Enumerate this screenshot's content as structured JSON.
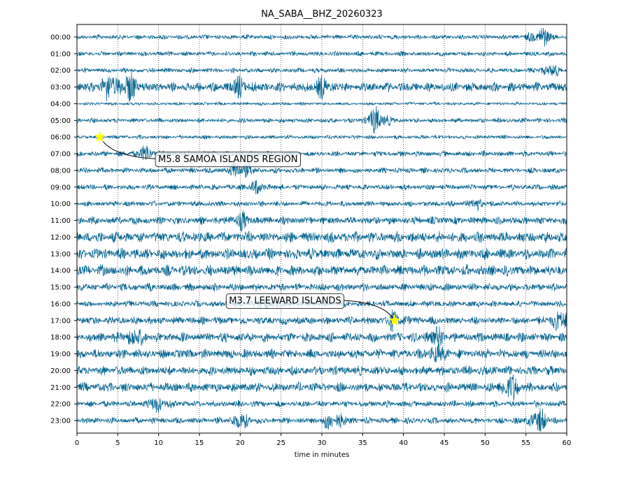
{
  "chart_data": {
    "type": "line",
    "title": "NA_SABA__BHZ_20260323",
    "xlabel": "time in minutes",
    "ylabel": "",
    "xlim": [
      0,
      60
    ],
    "x_ticks": [
      "0",
      "5",
      "10",
      "15",
      "20",
      "25",
      "30",
      "35",
      "40",
      "45",
      "50",
      "55",
      "60"
    ],
    "grid": "vertical dotted lines at each x tick",
    "trace_color": "#00628f",
    "rows": [
      {
        "label": "00:00",
        "amplitude": 3,
        "bursts": [
          {
            "t": 56.8,
            "amp": 12
          }
        ]
      },
      {
        "label": "01:00",
        "amplitude": 3,
        "bursts": []
      },
      {
        "label": "02:00",
        "amplitude": 3,
        "bursts": [
          {
            "t": 58,
            "amp": 7
          }
        ]
      },
      {
        "label": "03:00",
        "amplitude": 6,
        "bursts": [
          {
            "t": 4,
            "amp": 14
          },
          {
            "t": 6.5,
            "amp": 14
          },
          {
            "t": 20,
            "amp": 9
          },
          {
            "t": 30,
            "amp": 9
          }
        ]
      },
      {
        "label": "04:00",
        "amplitude": 2,
        "bursts": []
      },
      {
        "label": "05:00",
        "amplitude": 3,
        "bursts": [
          {
            "t": 36.8,
            "amp": 16
          }
        ]
      },
      {
        "label": "06:00",
        "amplitude": 2.5,
        "bursts": []
      },
      {
        "label": "07:00",
        "amplitude": 3.5,
        "bursts": [
          {
            "t": 8.5,
            "amp": 8
          }
        ]
      },
      {
        "label": "08:00",
        "amplitude": 3.5,
        "bursts": [
          {
            "t": 20,
            "amp": 14
          }
        ]
      },
      {
        "label": "09:00",
        "amplitude": 3.5,
        "bursts": [
          {
            "t": 22,
            "amp": 6
          }
        ]
      },
      {
        "label": "10:00",
        "amplitude": 3.5,
        "bursts": [
          {
            "t": 49,
            "amp": 5
          }
        ]
      },
      {
        "label": "11:00",
        "amplitude": 5,
        "bursts": [
          {
            "t": 20,
            "amp": 8
          }
        ]
      },
      {
        "label": "12:00",
        "amplitude": 7,
        "bursts": []
      },
      {
        "label": "13:00",
        "amplitude": 7,
        "bursts": []
      },
      {
        "label": "14:00",
        "amplitude": 7,
        "bursts": []
      },
      {
        "label": "15:00",
        "amplitude": 5,
        "bursts": []
      },
      {
        "label": "16:00",
        "amplitude": 4,
        "bursts": [
          {
            "t": 23,
            "amp": 7
          }
        ]
      },
      {
        "label": "17:00",
        "amplitude": 5,
        "bursts": [
          {
            "t": 39,
            "amp": 9
          },
          {
            "t": 59,
            "amp": 11
          }
        ]
      },
      {
        "label": "18:00",
        "amplitude": 6,
        "bursts": [
          {
            "t": 7,
            "amp": 9
          },
          {
            "t": 44,
            "amp": 9
          }
        ]
      },
      {
        "label": "19:00",
        "amplitude": 6,
        "bursts": [
          {
            "t": 44,
            "amp": 8
          }
        ]
      },
      {
        "label": "20:00",
        "amplitude": 6,
        "bursts": []
      },
      {
        "label": "21:00",
        "amplitude": 6,
        "bursts": [
          {
            "t": 53,
            "amp": 14
          }
        ]
      },
      {
        "label": "22:00",
        "amplitude": 4,
        "bursts": [
          {
            "t": 10,
            "amp": 9
          }
        ]
      },
      {
        "label": "23:00",
        "amplitude": 4,
        "bursts": [
          {
            "t": 20,
            "amp": 9
          },
          {
            "t": 31.5,
            "amp": 12
          },
          {
            "t": 56.5,
            "amp": 13
          }
        ]
      }
    ],
    "annotations": [
      {
        "text": "M5.8 SAMOA ISLANDS REGION",
        "row": 6,
        "t": 2.8,
        "label_t": 18.5,
        "label_row": 7.3,
        "marker_color": "#ffff00"
      },
      {
        "text": "M3.7 LEEWARD ISLANDS",
        "row": 17,
        "t": 38.9,
        "label_t": 25.5,
        "label_row": 15.8,
        "marker_color": "#ffff00"
      }
    ]
  }
}
